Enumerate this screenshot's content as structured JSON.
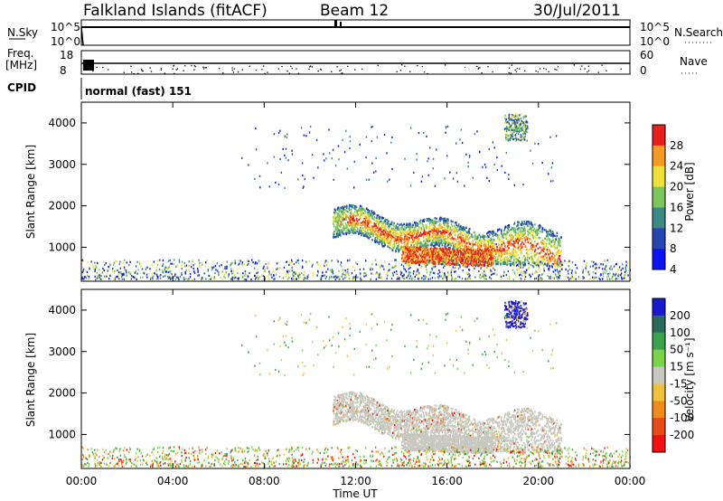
{
  "header": {
    "title": "Falkland Islands (fitACF)",
    "beam": "Beam 12",
    "date": "30/Jul/2011"
  },
  "strip_labels": {
    "nsky": "N.Sky",
    "nsky_ticks": [
      "10^5",
      "10^0"
    ],
    "nsearch": "N.Search",
    "freq": "Freq.",
    "freq_unit": "[MHz]",
    "freq_ticks": [
      "18",
      "8"
    ],
    "nave": "Nave",
    "nave_ticks": [
      "60",
      "0"
    ],
    "cpid": "CPID",
    "cpid_text": "normal (fast) 151"
  },
  "chart_data": [
    {
      "type": "heatmap",
      "title": "",
      "xlabel": "Time UT",
      "ylabel": "Slant Range [km]",
      "x_ticks": [
        "00:00",
        "04:00",
        "08:00",
        "12:00",
        "16:00",
        "20:00",
        "00:00"
      ],
      "xlim_hours": [
        0,
        24
      ],
      "y_ticks": [
        1000,
        2000,
        3000,
        4000
      ],
      "ylim": [
        180,
        4500
      ],
      "colorbar": {
        "label": "Power [dB]",
        "tick_labels": [
          "4",
          "8",
          "12",
          "16",
          "20",
          "24",
          "28"
        ],
        "colors": [
          "#0a14f0",
          "#2646b0",
          "#3d8a84",
          "#7cc65c",
          "#f0e23c",
          "#f69a24",
          "#e8201c"
        ]
      },
      "echo_regions": [
        {
          "t_start": 11.0,
          "t_end": 21.0,
          "range_start": 600,
          "range_end": 2400,
          "level": "12-28 dB"
        },
        {
          "t_start": 14.0,
          "t_end": 18.0,
          "range_start": 550,
          "range_end": 1000,
          "level": "20-28 dB"
        },
        {
          "t_start": 0.0,
          "t_end": 24.0,
          "range_start": 180,
          "range_end": 600,
          "level": "4-20 dB"
        },
        {
          "t_start": 18.5,
          "t_end": 19.5,
          "range_start": 3500,
          "range_end": 4200,
          "level": "8-20 dB"
        }
      ]
    },
    {
      "type": "heatmap",
      "title": "",
      "xlabel": "Time UT",
      "ylabel": "Slant Range [km]",
      "x_ticks": [
        "00:00",
        "04:00",
        "08:00",
        "12:00",
        "16:00",
        "20:00",
        "00:00"
      ],
      "xlim_hours": [
        0,
        24
      ],
      "y_ticks": [
        1000,
        2000,
        3000,
        4000
      ],
      "ylim": [
        180,
        4500
      ],
      "colorbar": {
        "label": "Velocity [m s⁻¹]",
        "tick_labels": [
          "200",
          "100",
          "50",
          "15",
          "-15",
          "-50",
          "-100",
          "-200"
        ],
        "colors": [
          "#1a1acc",
          "#2a6a5a",
          "#3aa24a",
          "#7ad44a",
          "#c8c8c0",
          "#f0c040",
          "#f08c1c",
          "#e84a1c",
          "#f01010"
        ]
      },
      "echo_regions": [
        {
          "t_start": 11.0,
          "t_end": 21.0,
          "range_start": 600,
          "range_end": 2400,
          "level": "-15 to 15 m/s (ground scatter)"
        },
        {
          "t_start": 0.0,
          "t_end": 24.0,
          "range_start": 180,
          "range_end": 600,
          "level": "15 to 100 m/s"
        },
        {
          "t_start": 18.5,
          "t_end": 19.5,
          "range_start": 3600,
          "range_end": 4200,
          "level": "above 200 m/s"
        }
      ]
    }
  ]
}
